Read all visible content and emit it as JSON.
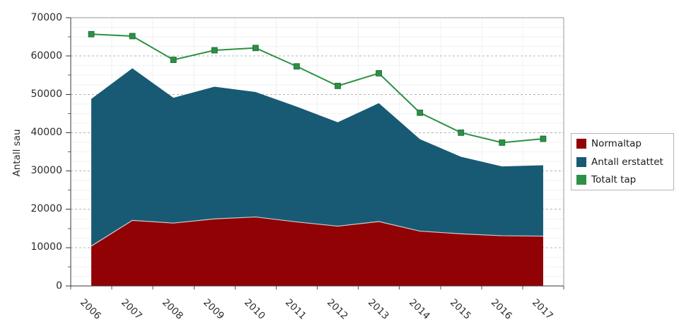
{
  "chart_data": {
    "type": "area",
    "title": "",
    "xlabel": "",
    "ylabel": "Antall sau",
    "categories": [
      "2006",
      "2007",
      "2008",
      "2009",
      "2010",
      "2011",
      "2012",
      "2013",
      "2014",
      "2015",
      "2016",
      "2017"
    ],
    "ylim": [
      0,
      70000
    ],
    "y_major_step": 10000,
    "y_tick_labels": [
      "0",
      "10000",
      "20000",
      "30000",
      "40000",
      "50000",
      "60000",
      "70000"
    ],
    "grid": "horizontal major dashed, minor faint, vertical faint at category boundaries",
    "legend_position": "right",
    "stacked": true,
    "series": [
      {
        "name": "Normaltap",
        "type": "area",
        "color": "#900204",
        "values": [
          10400,
          17100,
          16400,
          17500,
          18000,
          16700,
          15600,
          16800,
          14300,
          13600,
          13100,
          13000
        ]
      },
      {
        "name": "Antall erstattet",
        "type": "area",
        "color": "#185A74",
        "values": [
          38400,
          39700,
          32700,
          34500,
          32600,
          30100,
          27100,
          30900,
          24000,
          20100,
          18100,
          18500
        ]
      },
      {
        "name": "Totalt tap",
        "type": "line",
        "color": "#2C9146",
        "values": [
          65700,
          65200,
          59000,
          61500,
          62100,
          57300,
          52200,
          55500,
          45200,
          40000,
          37400,
          38400
        ]
      }
    ]
  }
}
